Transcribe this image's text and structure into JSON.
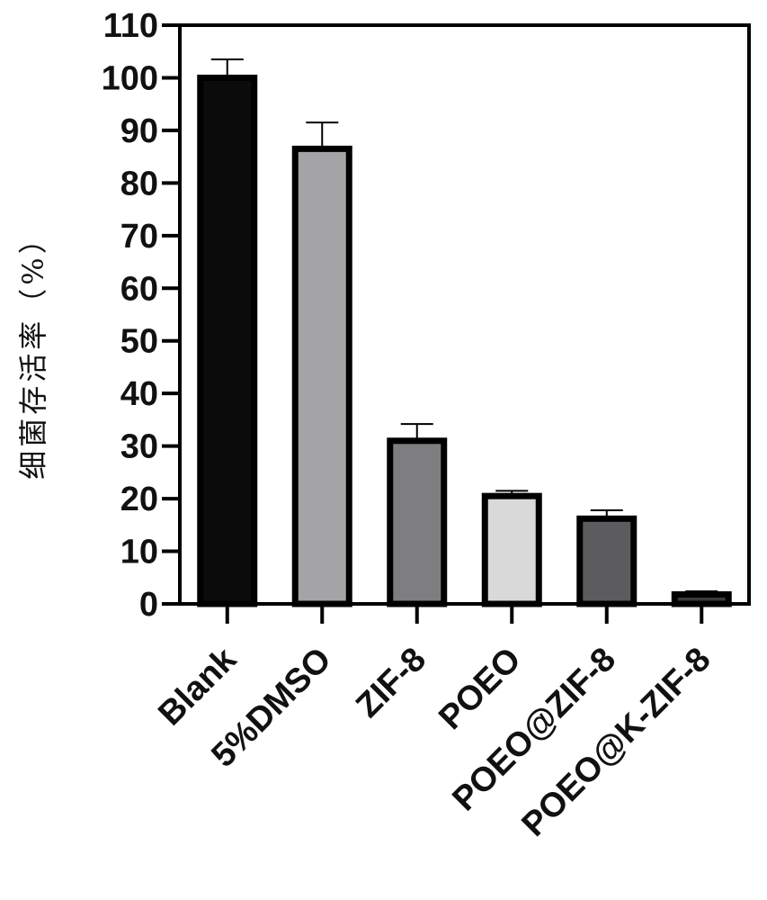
{
  "chart_data": {
    "type": "bar",
    "title": "",
    "xlabel": "",
    "ylabel": "细菌存活率（%）",
    "ylim": [
      0,
      110
    ],
    "yticks": [
      0,
      10,
      20,
      30,
      40,
      50,
      60,
      70,
      80,
      90,
      100,
      110
    ],
    "categories": [
      "Blank",
      "5%DMSO",
      "ZIF-8",
      "POEO",
      "POEO@ZIF-8",
      "POEO@K-ZIF-8"
    ],
    "values": [
      100,
      86.5,
      31,
      20.5,
      16.2,
      1.8
    ],
    "errors": [
      3.5,
      5,
      3.2,
      1,
      1.6,
      0.6
    ],
    "colors": [
      "#0b0b0b",
      "#a4a4a6",
      "#7e7e80",
      "#d9d9d9",
      "#5c5c5e",
      "#3a3a3c"
    ],
    "grid": false,
    "legend": "none"
  }
}
